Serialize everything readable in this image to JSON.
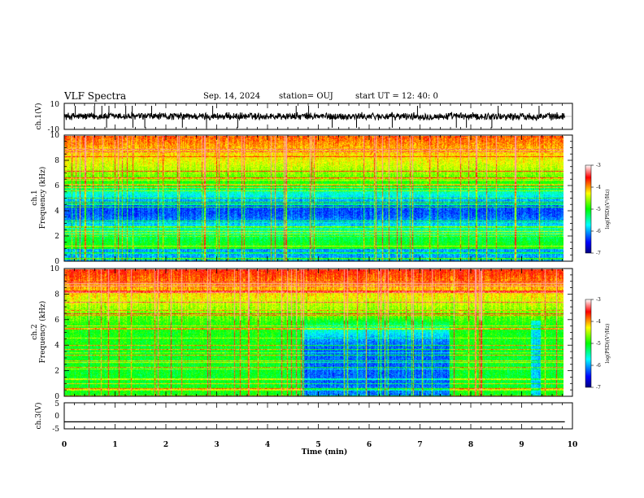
{
  "header": {
    "title": "VLF Spectra",
    "date": "Sep. 14, 2024",
    "station": "station= OUJ",
    "start": "start  UT  =   12: 40: 0"
  },
  "chart_data": [
    {
      "type": "line",
      "panel": "ch1-waveform",
      "ylabel": "ch.1(V)",
      "yticks": [
        "10",
        "-10"
      ],
      "ylim": [
        -10,
        10
      ],
      "xlim": [
        0,
        10
      ],
      "noise_amplitude_v": 3,
      "line_color": "#000000"
    },
    {
      "type": "heatmap",
      "panel": "ch1-spectrogram",
      "ylabel": "ch.1",
      "ylabel2": "Frequency  (kHz)",
      "yticks": [
        "0",
        "2",
        "4",
        "6",
        "8",
        "10"
      ],
      "ylim": [
        0,
        10
      ],
      "xlim": [
        0,
        9.85
      ],
      "colorbar": {
        "ticks": [
          "-3",
          "-4",
          "-5",
          "-6",
          "-7"
        ],
        "label": "log(PSD)(V²/Hz)",
        "range": [
          -7,
          -3
        ]
      }
    },
    {
      "type": "heatmap",
      "panel": "ch2-spectrogram",
      "ylabel": "ch.2",
      "ylabel2": "Frequency  (kHz)",
      "yticks": [
        "0",
        "2",
        "4",
        "6",
        "8",
        "10"
      ],
      "ylim": [
        0,
        10
      ],
      "xlim": [
        0,
        9.85
      ],
      "colorbar": {
        "ticks": [
          "-3",
          "-4",
          "-5",
          "-6",
          "-7"
        ],
        "label": "log(PSD)(V²/Hz)",
        "range": [
          -7,
          -3
        ]
      }
    },
    {
      "type": "line",
      "panel": "ch3-waveform",
      "ylabel": "ch.3(V)",
      "yticks": [
        "5",
        "0",
        "-5"
      ],
      "ylim": [
        -5,
        5
      ],
      "xlim": [
        0,
        10
      ],
      "constant_value_v": -2.3,
      "line_color": "#000000"
    }
  ],
  "xaxis": {
    "label": "Time  (min)",
    "ticks": [
      "0",
      "1",
      "2",
      "3",
      "4",
      "5",
      "6",
      "7",
      "8",
      "9",
      "10"
    ],
    "range": [
      0,
      10
    ]
  }
}
